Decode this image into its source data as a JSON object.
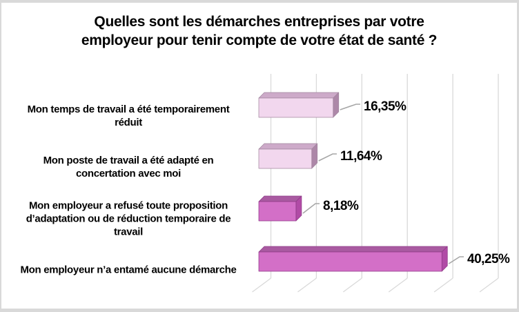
{
  "title": "Quelles sont les démarches entreprises par votre\nemployeur pour tenir compte de votre état de santé ?",
  "chart_data": {
    "type": "bar",
    "orientation": "horizontal",
    "style": "3d",
    "title": "Quelles sont les démarches entreprises par votre employeur pour tenir compte de votre état de santé ?",
    "categories": [
      "Mon temps de travail a été temporairement\nréduit",
      "Mon poste de travail a été adapté en\nconcertation avec moi",
      "Mon employeur a refusé toute proposition\nd’adaptation ou de réduction temporaire de\ntravail",
      "Mon employeur n’a entamé aucune démarche"
    ],
    "values": [
      16.35,
      11.64,
      8.18,
      40.25
    ],
    "labels": [
      "16,35%",
      "11,64%",
      "8,18%",
      "40,25%"
    ],
    "xlim": [
      0,
      50
    ],
    "gridline_step": 10,
    "grid": true,
    "legend": false,
    "axis_tick_labels_visible": false,
    "bar_styles": [
      "light",
      "light",
      "dark",
      "dark"
    ],
    "palette": {
      "light": {
        "front": "#f2d7ee",
        "top": "#cdaac9",
        "side": "#ad87a8",
        "edge": "#a1869e"
      },
      "dark": {
        "front": "#d36fc7",
        "top": "#a95aa1",
        "side": "#b14ba6",
        "edge": "#8f3a87"
      }
    },
    "gridline_color": "#d9d9d9",
    "leader_color": "#a6a6a6",
    "text_color": "#000000",
    "background_color": "#ffffff",
    "frame_border_color": "#d9d9d9"
  }
}
